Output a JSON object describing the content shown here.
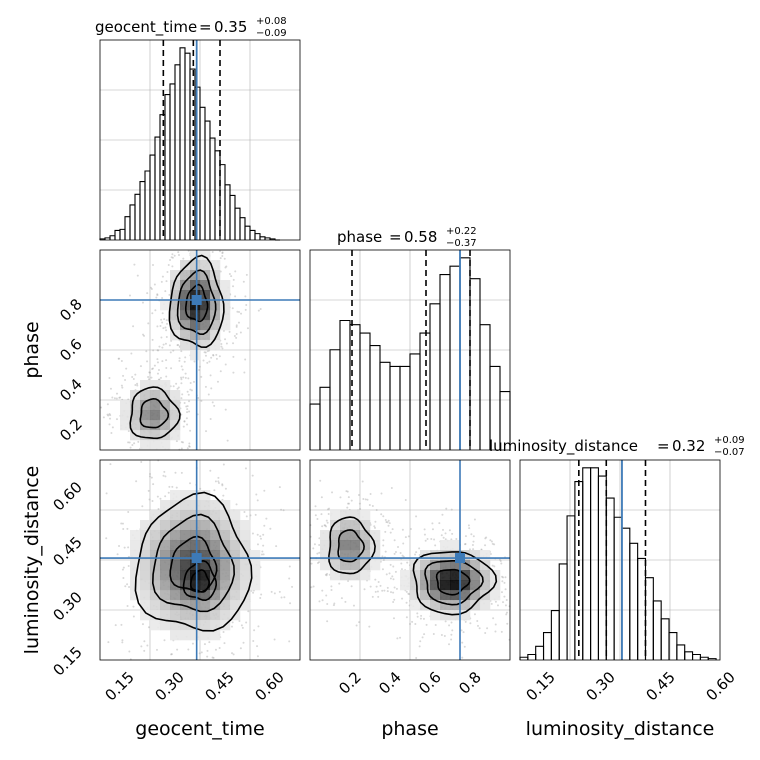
{
  "figure": {
    "type": "corner-plot"
  },
  "colors": {
    "truth": "#3d7ab7",
    "histogram_line": "#000000",
    "quantile_line": "#000000",
    "grid": "#b0b0b0",
    "scatter": "#a8a8a8",
    "density_dark": "#000000",
    "density_light": "#f4f4f4"
  },
  "chart_data": [
    {
      "id": "geocent_time-hist",
      "type": "histogram",
      "parameter": "geocent_time",
      "title": {
        "name": "geocent_time",
        "median": "0.35",
        "upper": "+0.08",
        "lower": "−0.09"
      },
      "xlim": [
        0.07,
        0.67
      ],
      "bins": {
        "edges": [
          0.07,
          0.085,
          0.1,
          0.115,
          0.13,
          0.145,
          0.16,
          0.175,
          0.19,
          0.205,
          0.22,
          0.235,
          0.25,
          0.265,
          0.28,
          0.295,
          0.31,
          0.325,
          0.34,
          0.355,
          0.37,
          0.385,
          0.4,
          0.415,
          0.43,
          0.445,
          0.46,
          0.475,
          0.49,
          0.505,
          0.52,
          0.535,
          0.55,
          0.565,
          0.58,
          0.595,
          0.61
        ],
        "counts": [
          1,
          2,
          4,
          9,
          10,
          22,
          33,
          43,
          55,
          65,
          80,
          97,
          118,
          137,
          147,
          165,
          181,
          176,
          161,
          144,
          125,
          112,
          96,
          84,
          71,
          52,
          42,
          30,
          21,
          13,
          9,
          6,
          3,
          2,
          1,
          0
        ]
      },
      "quantiles": [
        0.26,
        0.35,
        0.43
      ],
      "truth": 0.36
    },
    {
      "id": "phase-hist",
      "type": "histogram",
      "parameter": "phase",
      "title": {
        "name": "phase",
        "median": "0.58",
        "upper": "+0.22",
        "lower": "−0.37"
      },
      "xlim": [
        0.0,
        1.0
      ],
      "bins": {
        "edges": [
          0.0,
          0.05,
          0.1,
          0.15,
          0.2,
          0.25,
          0.3,
          0.35,
          0.4,
          0.45,
          0.5,
          0.55,
          0.6,
          0.65,
          0.7,
          0.75,
          0.8,
          0.85,
          0.9,
          0.95,
          1.0
        ],
        "counts": [
          11,
          15,
          24,
          31,
          30,
          28,
          25,
          21,
          20,
          20,
          23,
          28,
          35,
          42,
          44,
          46,
          41,
          30,
          20,
          14
        ]
      },
      "quantiles": [
        0.21,
        0.58,
        0.8
      ],
      "truth": 0.75
    },
    {
      "id": "luminosity_distance-hist",
      "type": "histogram",
      "parameter": "luminosity_distance",
      "title": {
        "name": "luminosity_distance",
        "median": "0.32",
        "upper": "+0.09",
        "lower": "−0.07"
      },
      "xlim": [
        0.1,
        0.61
      ],
      "bins": {
        "edges": [
          0.1,
          0.12,
          0.14,
          0.16,
          0.18,
          0.2,
          0.22,
          0.24,
          0.26,
          0.28,
          0.3,
          0.32,
          0.34,
          0.36,
          0.38,
          0.4,
          0.42,
          0.44,
          0.46,
          0.48,
          0.5,
          0.52,
          0.54,
          0.56,
          0.58,
          0.6
        ],
        "counts": [
          2,
          4,
          10,
          20,
          36,
          70,
          105,
          130,
          140,
          140,
          134,
          118,
          104,
          96,
          85,
          74,
          60,
          43,
          30,
          20,
          11,
          6,
          4,
          2,
          1
        ]
      },
      "quantiles": [
        0.25,
        0.32,
        0.42
      ],
      "truth": 0.36
    },
    {
      "id": "phase-vs-geocent_time",
      "type": "heatmap",
      "x_parameter": "geocent_time",
      "y_parameter": "phase",
      "xlim": [
        0.07,
        0.67
      ],
      "ylim": [
        0.0,
        1.0
      ],
      "truth": {
        "x": 0.36,
        "y": 0.75
      },
      "modes": [
        {
          "x": 0.36,
          "y": 0.73,
          "sx": 0.04,
          "sy": 0.11,
          "weight": 1.0
        },
        {
          "x": 0.23,
          "y": 0.18,
          "sx": 0.045,
          "sy": 0.08,
          "weight": 0.55
        }
      ]
    },
    {
      "id": "luminosity_distance-vs-geocent_time",
      "type": "heatmap",
      "x_parameter": "geocent_time",
      "y_parameter": "luminosity_distance",
      "xlim": [
        0.07,
        0.67
      ],
      "ylim": [
        0.1,
        0.61
      ],
      "truth": {
        "x": 0.36,
        "y": 0.36
      },
      "modes": [
        {
          "x": 0.35,
          "y": 0.34,
          "sx": 0.085,
          "sy": 0.085,
          "weight": 1.0
        },
        {
          "x": 0.37,
          "y": 0.3,
          "sx": 0.03,
          "sy": 0.03,
          "weight": 0.45
        }
      ]
    },
    {
      "id": "luminosity_distance-vs-phase",
      "type": "heatmap",
      "x_parameter": "phase",
      "y_parameter": "luminosity_distance",
      "xlim": [
        0.0,
        1.0
      ],
      "ylim": [
        0.1,
        0.61
      ],
      "truth": {
        "x": 0.75,
        "y": 0.36
      },
      "modes": [
        {
          "x": 0.71,
          "y": 0.3,
          "sx": 0.1,
          "sy": 0.04,
          "weight": 1.0
        },
        {
          "x": 0.2,
          "y": 0.39,
          "sx": 0.07,
          "sy": 0.045,
          "weight": 0.55
        }
      ]
    }
  ],
  "axes": {
    "x_labels": [
      "geocent_time",
      "phase",
      "luminosity_distance"
    ],
    "y_labels": [
      "phase",
      "luminosity_distance"
    ],
    "geocent_time_ticks": [
      "0.15",
      "0.30",
      "0.45",
      "0.60"
    ],
    "phase_ticks": [
      "0.2",
      "0.4",
      "0.6",
      "0.8"
    ],
    "luminosity_distance_ticks": [
      "0.15",
      "0.30",
      "0.45",
      "0.60"
    ]
  }
}
